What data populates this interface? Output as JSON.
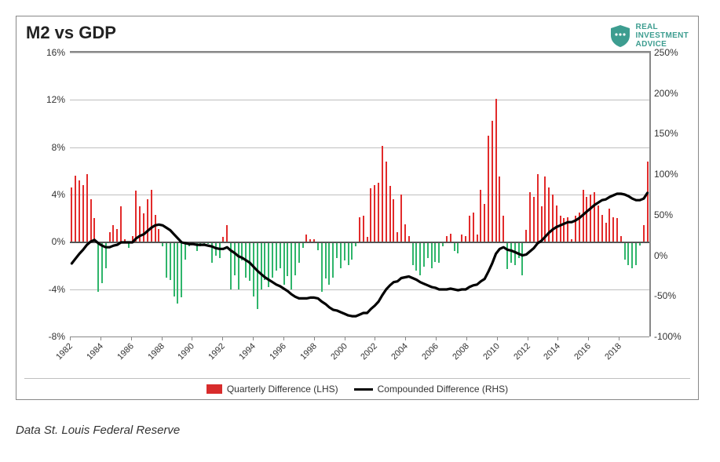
{
  "chart": {
    "title": "M2 vs GDP",
    "brand": {
      "line1": "REAL",
      "line2": "INVESTMENT",
      "line3": "ADVICE",
      "color": "#3d9d90"
    },
    "left_axis": {
      "min": -8,
      "max": 16,
      "ticks": [
        -8,
        -4,
        0,
        4,
        8,
        12,
        16
      ],
      "suffix": "%"
    },
    "right_axis": {
      "min": -100,
      "max": 250,
      "ticks": [
        -100,
        -50,
        0,
        50,
        100,
        150,
        200,
        250
      ],
      "suffix": "%"
    },
    "x_ticks": [
      1982,
      1984,
      1986,
      1988,
      1990,
      1992,
      1994,
      1996,
      1998,
      2000,
      2002,
      2004,
      2006,
      2008,
      2010,
      2012,
      2014,
      2016,
      2018
    ],
    "x_min": 1982,
    "x_max": 2020,
    "legend": [
      {
        "label": "Quarterly Difference (LHS)",
        "type": "box",
        "color": "#d82c2c"
      },
      {
        "label": "Compounded Difference (RHS)",
        "type": "line",
        "color": "#000000"
      }
    ],
    "bar_colors": {
      "pos": "#e22b2b",
      "neg": "#2fb56b"
    },
    "line_color": "#000000",
    "line_width": 3.2,
    "grid_color": "#bfbfbf",
    "border_color": "#888888",
    "bars_lhs": [
      4.6,
      5.6,
      5.2,
      4.8,
      5.7,
      3.6,
      2.0,
      -4.2,
      -3.5,
      -2.2,
      0.8,
      1.4,
      1.1,
      3.0,
      0.2,
      -0.5,
      0.5,
      4.3,
      3.0,
      2.4,
      3.6,
      4.4,
      2.3,
      1.1,
      -0.4,
      -3.0,
      -3.2,
      -4.6,
      -5.2,
      -4.7,
      -1.5,
      -0.4,
      -0.1,
      -0.8,
      -0.4,
      -0.2,
      -0.2,
      -1.8,
      -1.2,
      -1.4,
      0.4,
      1.4,
      -4.0,
      -2.8,
      -4.0,
      -1.6,
      -3.0,
      -3.3,
      -4.6,
      -5.7,
      -4.0,
      -3.2,
      -3.8,
      -3.0,
      -2.4,
      -2.2,
      -3.6,
      -2.9,
      -4.0,
      -2.8,
      -1.8,
      -0.5,
      0.6,
      0.2,
      0.2,
      -0.7,
      -4.2,
      -3.1,
      -3.6,
      -3.0,
      -1.4,
      -2.2,
      -1.6,
      -2.0,
      -1.5,
      -0.4,
      2.1,
      2.2,
      0.4,
      4.5,
      4.8,
      5.0,
      8.1,
      6.8,
      4.7,
      3.6,
      0.8,
      4.0,
      1.5,
      0.5,
      -2.0,
      -2.4,
      -2.8,
      -2.1,
      -1.4,
      -2.2,
      -1.7,
      -1.8,
      -0.4,
      0.5,
      0.7,
      -0.8,
      -1.0,
      0.6,
      0.5,
      2.2,
      2.5,
      0.6,
      4.4,
      3.2,
      9.0,
      10.2,
      12.1,
      5.5,
      2.2,
      -2.3,
      -1.8,
      -2.0,
      -1.4,
      -2.8,
      1.0,
      4.2,
      3.8,
      5.7,
      3.0,
      5.5,
      4.6,
      4.0,
      3.1,
      2.2,
      2.0,
      2.1,
      0.2,
      2.2,
      2.5,
      4.4,
      3.8,
      4.0,
      4.2,
      3.1,
      2.3,
      1.6,
      2.8,
      2.1,
      2.0,
      0.5,
      -1.5,
      -2.0,
      -2.2,
      -2.0,
      -0.3,
      1.4,
      6.8
    ],
    "line_rhs": [
      -10,
      -4,
      2,
      7,
      13,
      17,
      19,
      15,
      12,
      10,
      10,
      12,
      13,
      16,
      16,
      16,
      16,
      21,
      24,
      26,
      30,
      34,
      37,
      38,
      37,
      34,
      31,
      26,
      21,
      16,
      15,
      14,
      14,
      13,
      13,
      13,
      12,
      11,
      9,
      8,
      8,
      10,
      6,
      3,
      -1,
      -3,
      -6,
      -9,
      -14,
      -19,
      -23,
      -27,
      -30,
      -33,
      -36,
      -38,
      -41,
      -44,
      -48,
      -51,
      -53,
      -53,
      -53,
      -52,
      -52,
      -53,
      -57,
      -60,
      -64,
      -67,
      -68,
      -70,
      -72,
      -74,
      -75,
      -75,
      -73,
      -71,
      -71,
      -66,
      -62,
      -57,
      -49,
      -42,
      -37,
      -33,
      -32,
      -28,
      -27,
      -26,
      -28,
      -30,
      -33,
      -35,
      -37,
      -39,
      -40,
      -42,
      -42,
      -42,
      -41,
      -42,
      -43,
      -42,
      -42,
      -39,
      -37,
      -36,
      -32,
      -29,
      -20,
      -10,
      2,
      8,
      10,
      7,
      6,
      4,
      2,
      0,
      1,
      5,
      9,
      15,
      18,
      23,
      28,
      32,
      35,
      37,
      39,
      41,
      41,
      43,
      46,
      50,
      54,
      58,
      62,
      65,
      68,
      69,
      72,
      74,
      76,
      76,
      75,
      73,
      70,
      68,
      68,
      70,
      77
    ],
    "line_rhs_special": [
      {
        "idx": 89,
        "val": -26
      },
      {
        "idx": 90,
        "val": -28
      },
      {
        "idx": 100,
        "val": -41
      },
      {
        "idx": 101,
        "val": -42
      },
      {
        "idx": 102,
        "val": -43
      },
      {
        "idx": 103,
        "val": -42
      },
      {
        "idx": 107,
        "val": -36
      },
      {
        "idx": 112,
        "val": 2
      },
      {
        "idx": 113,
        "val": 8
      }
    ],
    "chart_lhs_series": {
      "values": [
        5.5,
        6.3,
        5.8,
        5.4,
        6.4,
        4.1,
        2.3,
        -4.7,
        -3.9,
        -2.5,
        0.9,
        1.6,
        1.3,
        3.4,
        0.3,
        -0.6,
        0.6,
        4.8,
        3.4,
        2.7,
        4.1,
        5.0,
        2.6,
        1.3,
        -0.5,
        -3.4,
        -3.6,
        -5.2,
        -5.9,
        -5.3,
        -1.8,
        -0.5,
        -0.2,
        -0.9,
        -0.5,
        -0.3,
        -0.3,
        -2.1,
        -1.4,
        -1.6,
        0.5,
        1.6,
        -4.5,
        -3.2,
        -4.5,
        -1.8,
        -3.4,
        -3.8,
        -5.2,
        -6.4,
        -4.5,
        -3.6,
        -4.3,
        -3.4,
        -2.7,
        -2.5,
        -4.1,
        -3.3,
        -4.5,
        -3.2,
        -2.1,
        -0.6,
        0.7,
        0.3,
        0.3,
        -0.8,
        -4.7,
        -3.5,
        -4.1,
        -3.4,
        -1.6,
        -2.5,
        -1.8,
        -2.3,
        -1.8,
        -0.5,
        2.4,
        2.5,
        0.5,
        5.1,
        5.4,
        5.7,
        9.1,
        7.7,
        5.3,
        4.1,
        0.9,
        4.5,
        1.8,
        0.6,
        -2.3,
        -2.7,
        -3.2,
        -2.4,
        -1.6,
        -2.5,
        -1.9,
        -2.1,
        -0.5,
        0.6,
        0.8,
        -0.9,
        -1.2,
        0.7,
        0.6,
        2.5,
        2.8,
        0.7,
        5.0,
        3.6,
        10.2,
        11.5,
        13.6,
        6.2,
        2.5,
        -2.6,
        -2.1,
        -2.3,
        -1.6,
        -3.2,
        1.2,
        4.8,
        4.3,
        6.4,
        3.4,
        6.2,
        5.2,
        4.5,
        3.5,
        2.5,
        2.3,
        2.4,
        0.3,
        2.5,
        2.8,
        5.0,
        4.3,
        4.5,
        4.8,
        3.5,
        2.6,
        1.8,
        3.2,
        2.4,
        2.3,
        0.6,
        -1.8,
        -2.3,
        -2.5,
        -2.3,
        -0.4,
        1.6,
        7.7
      ]
    }
  },
  "source": "Data St. Louis Federal Reserve"
}
